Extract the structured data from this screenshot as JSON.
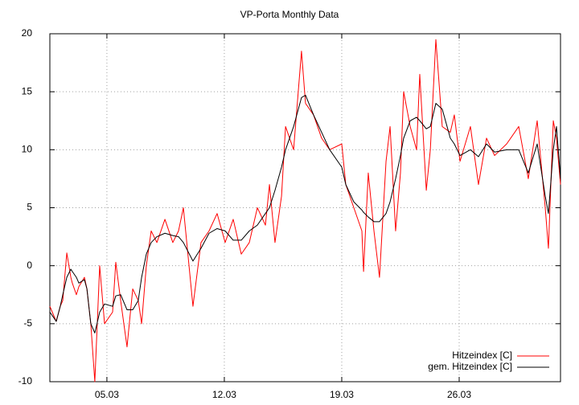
{
  "chart_data": {
    "type": "line",
    "title": "VP-Porta Monthly Data",
    "x": [
      1.6,
      1.89,
      1.98,
      2.22,
      2.37,
      2.61,
      2.85,
      2.94,
      3.18,
      3.33,
      3.66,
      3.81,
      4.04,
      4.28,
      4.57,
      4.86,
      5.34,
      5.53,
      5.82,
      6.2,
      6.54,
      6.87,
      7.07,
      7.35,
      7.64,
      7.98,
      8.46,
      8.93,
      9.27,
      9.56,
      10.13,
      10.61,
      11.09,
      11.57,
      12.05,
      12.53,
      13.01,
      13.49,
      13.97,
      14.45,
      14.69,
      15.02,
      15.41,
      15.65,
      16.13,
      16.6,
      16.84,
      17.32,
      17.8,
      18.28,
      19.0,
      19.24,
      19.72,
      20.2,
      20.3,
      20.58,
      20.92,
      21.25,
      21.64,
      21.88,
      22.21,
      22.5,
      22.69,
      23.08,
      23.46,
      23.65,
      24.04,
      24.28,
      24.61,
      24.99,
      25.47,
      25.71,
      26.05,
      26.67,
      27.15,
      27.63,
      28.11,
      28.83,
      29.55,
      30.12,
      30.65,
      31.13,
      31.32,
      31.61,
      31.8,
      32.04
    ],
    "series": [
      {
        "name": "Hitzeindex [C]",
        "color": "#ff0000",
        "values": [
          -3.5,
          -4.5,
          -4.8,
          -3.5,
          -3,
          1.1,
          -1,
          -1.5,
          -2.5,
          -1.8,
          -1,
          -2,
          -5,
          -10,
          0,
          -5,
          -4,
          0.3,
          -3,
          -7,
          -2,
          -3,
          -5,
          0,
          3,
          2,
          4,
          2,
          3,
          5,
          -3.5,
          2,
          3,
          4.5,
          2,
          4,
          1,
          2,
          5,
          3.5,
          7,
          2,
          6,
          12,
          10,
          18.5,
          14,
          13,
          11,
          10,
          10.5,
          7,
          5,
          3,
          -0.5,
          8,
          3,
          -1,
          9,
          12,
          3,
          8,
          15,
          12,
          10,
          16.5,
          6.5,
          10,
          19.5,
          12,
          11.5,
          13,
          9,
          12,
          7,
          11,
          9.5,
          10.5,
          12,
          7.5,
          12.5,
          5,
          1.5,
          12.5,
          11,
          7
        ]
      },
      {
        "name": "gem. Hitzeindex [C]",
        "color": "#000000",
        "values": [
          -4,
          -4.6,
          -4.8,
          -3.5,
          -2.5,
          -1,
          -0.3,
          -0.5,
          -1,
          -1.5,
          -1.2,
          -2,
          -5,
          -5.8,
          -4,
          -3.3,
          -3.5,
          -2.6,
          -2.5,
          -3.8,
          -3.8,
          -3,
          -1,
          1,
          2,
          2.5,
          2.8,
          2.6,
          2.5,
          2,
          0.4,
          1.5,
          2.8,
          3.2,
          3,
          2.2,
          2.2,
          3,
          3.5,
          4.5,
          5,
          6.5,
          8.5,
          10,
          12,
          14.5,
          14.7,
          13,
          11.5,
          10,
          8.5,
          7,
          5.5,
          4.8,
          4.6,
          4.2,
          3.8,
          3.8,
          4.5,
          5.5,
          7.5,
          9.5,
          11,
          12.5,
          12.8,
          12.5,
          11.8,
          12,
          14,
          13.5,
          11,
          10.5,
          9.5,
          10,
          9.4,
          10.5,
          9.8,
          10,
          10,
          8,
          10.5,
          6,
          4.5,
          10,
          12,
          7.5
        ]
      }
    ],
    "xlim": [
      1.6,
      32.04
    ],
    "xticks": [
      {
        "value": 5,
        "label": "05.03"
      },
      {
        "value": 12,
        "label": "12.03"
      },
      {
        "value": 19,
        "label": "19.03"
      },
      {
        "value": 26,
        "label": "26.03"
      }
    ],
    "ylim": [
      -10,
      20
    ],
    "yticks": [
      -10,
      -5,
      0,
      5,
      10,
      15,
      20
    ],
    "grid": true,
    "legend": "bottom-right"
  }
}
